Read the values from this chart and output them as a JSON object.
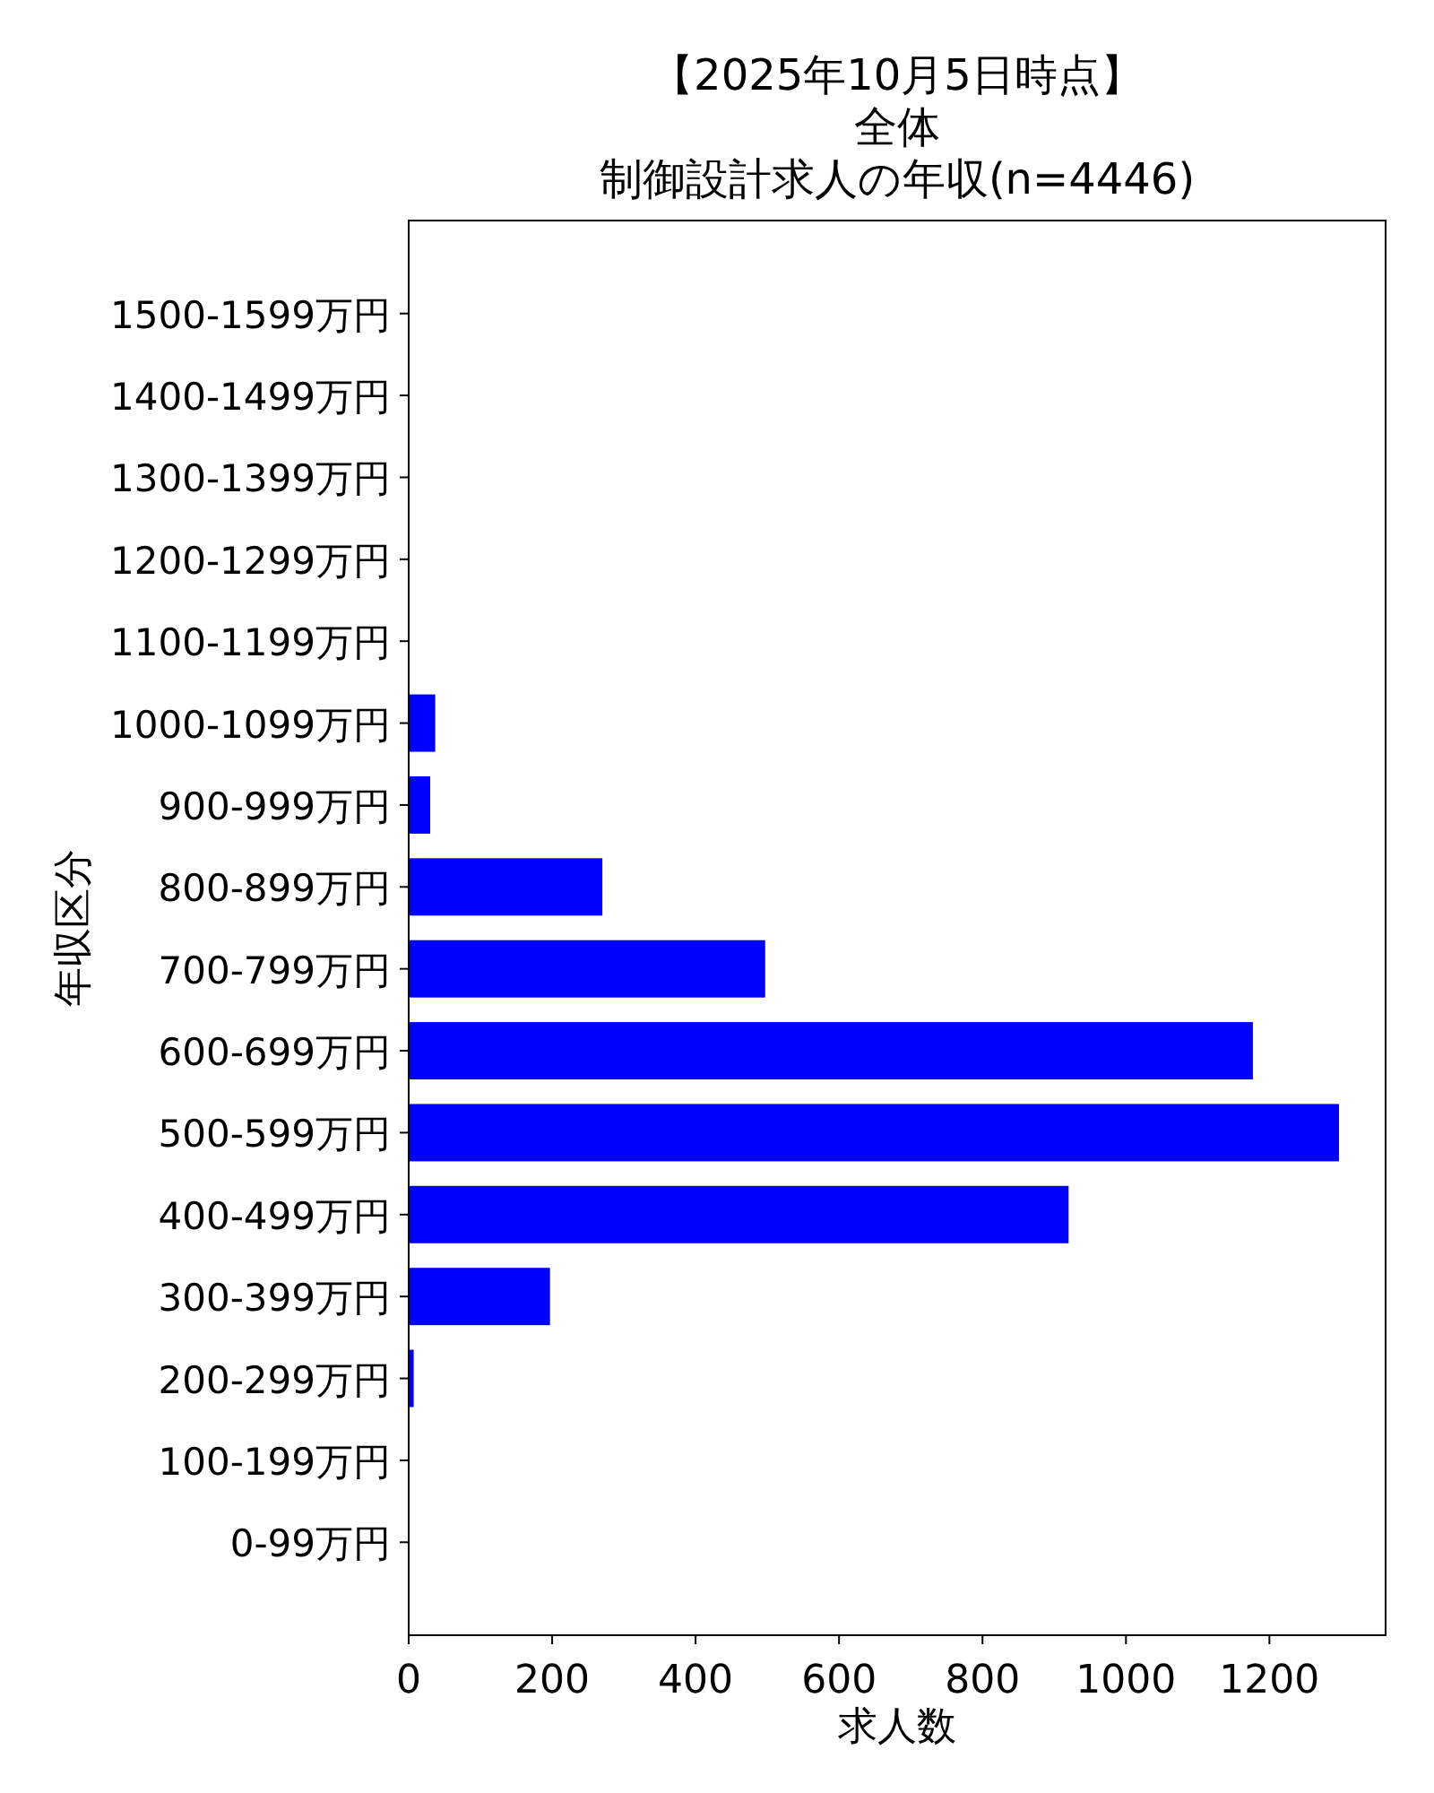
{
  "chart_data": {
    "type": "bar",
    "orientation": "horizontal",
    "annotations": [
      "【2025年10月5日時点】",
      "全体"
    ],
    "title": "制御設計求人の年収(n=4446)",
    "xlabel": "求人数",
    "ylabel": "年収区分",
    "categories": [
      "1500-1599万円",
      "1400-1499万円",
      "1300-1399万円",
      "1200-1299万円",
      "1100-1199万円",
      "1000-1099万円",
      "900-999万円",
      "800-899万円",
      "700-799万円",
      "600-699万円",
      "500-599万円",
      "400-499万円",
      "300-399万円",
      "200-299万円",
      "100-199万円",
      "0-99万円"
    ],
    "values": [
      0,
      0,
      0,
      0,
      0,
      37,
      30,
      270,
      497,
      1177,
      1297,
      920,
      197,
      7,
      0,
      0
    ],
    "color": "#0000ff",
    "xlim": [
      0,
      1362
    ],
    "xticks": [
      0,
      200,
      400,
      600,
      800,
      1000,
      1200
    ]
  }
}
